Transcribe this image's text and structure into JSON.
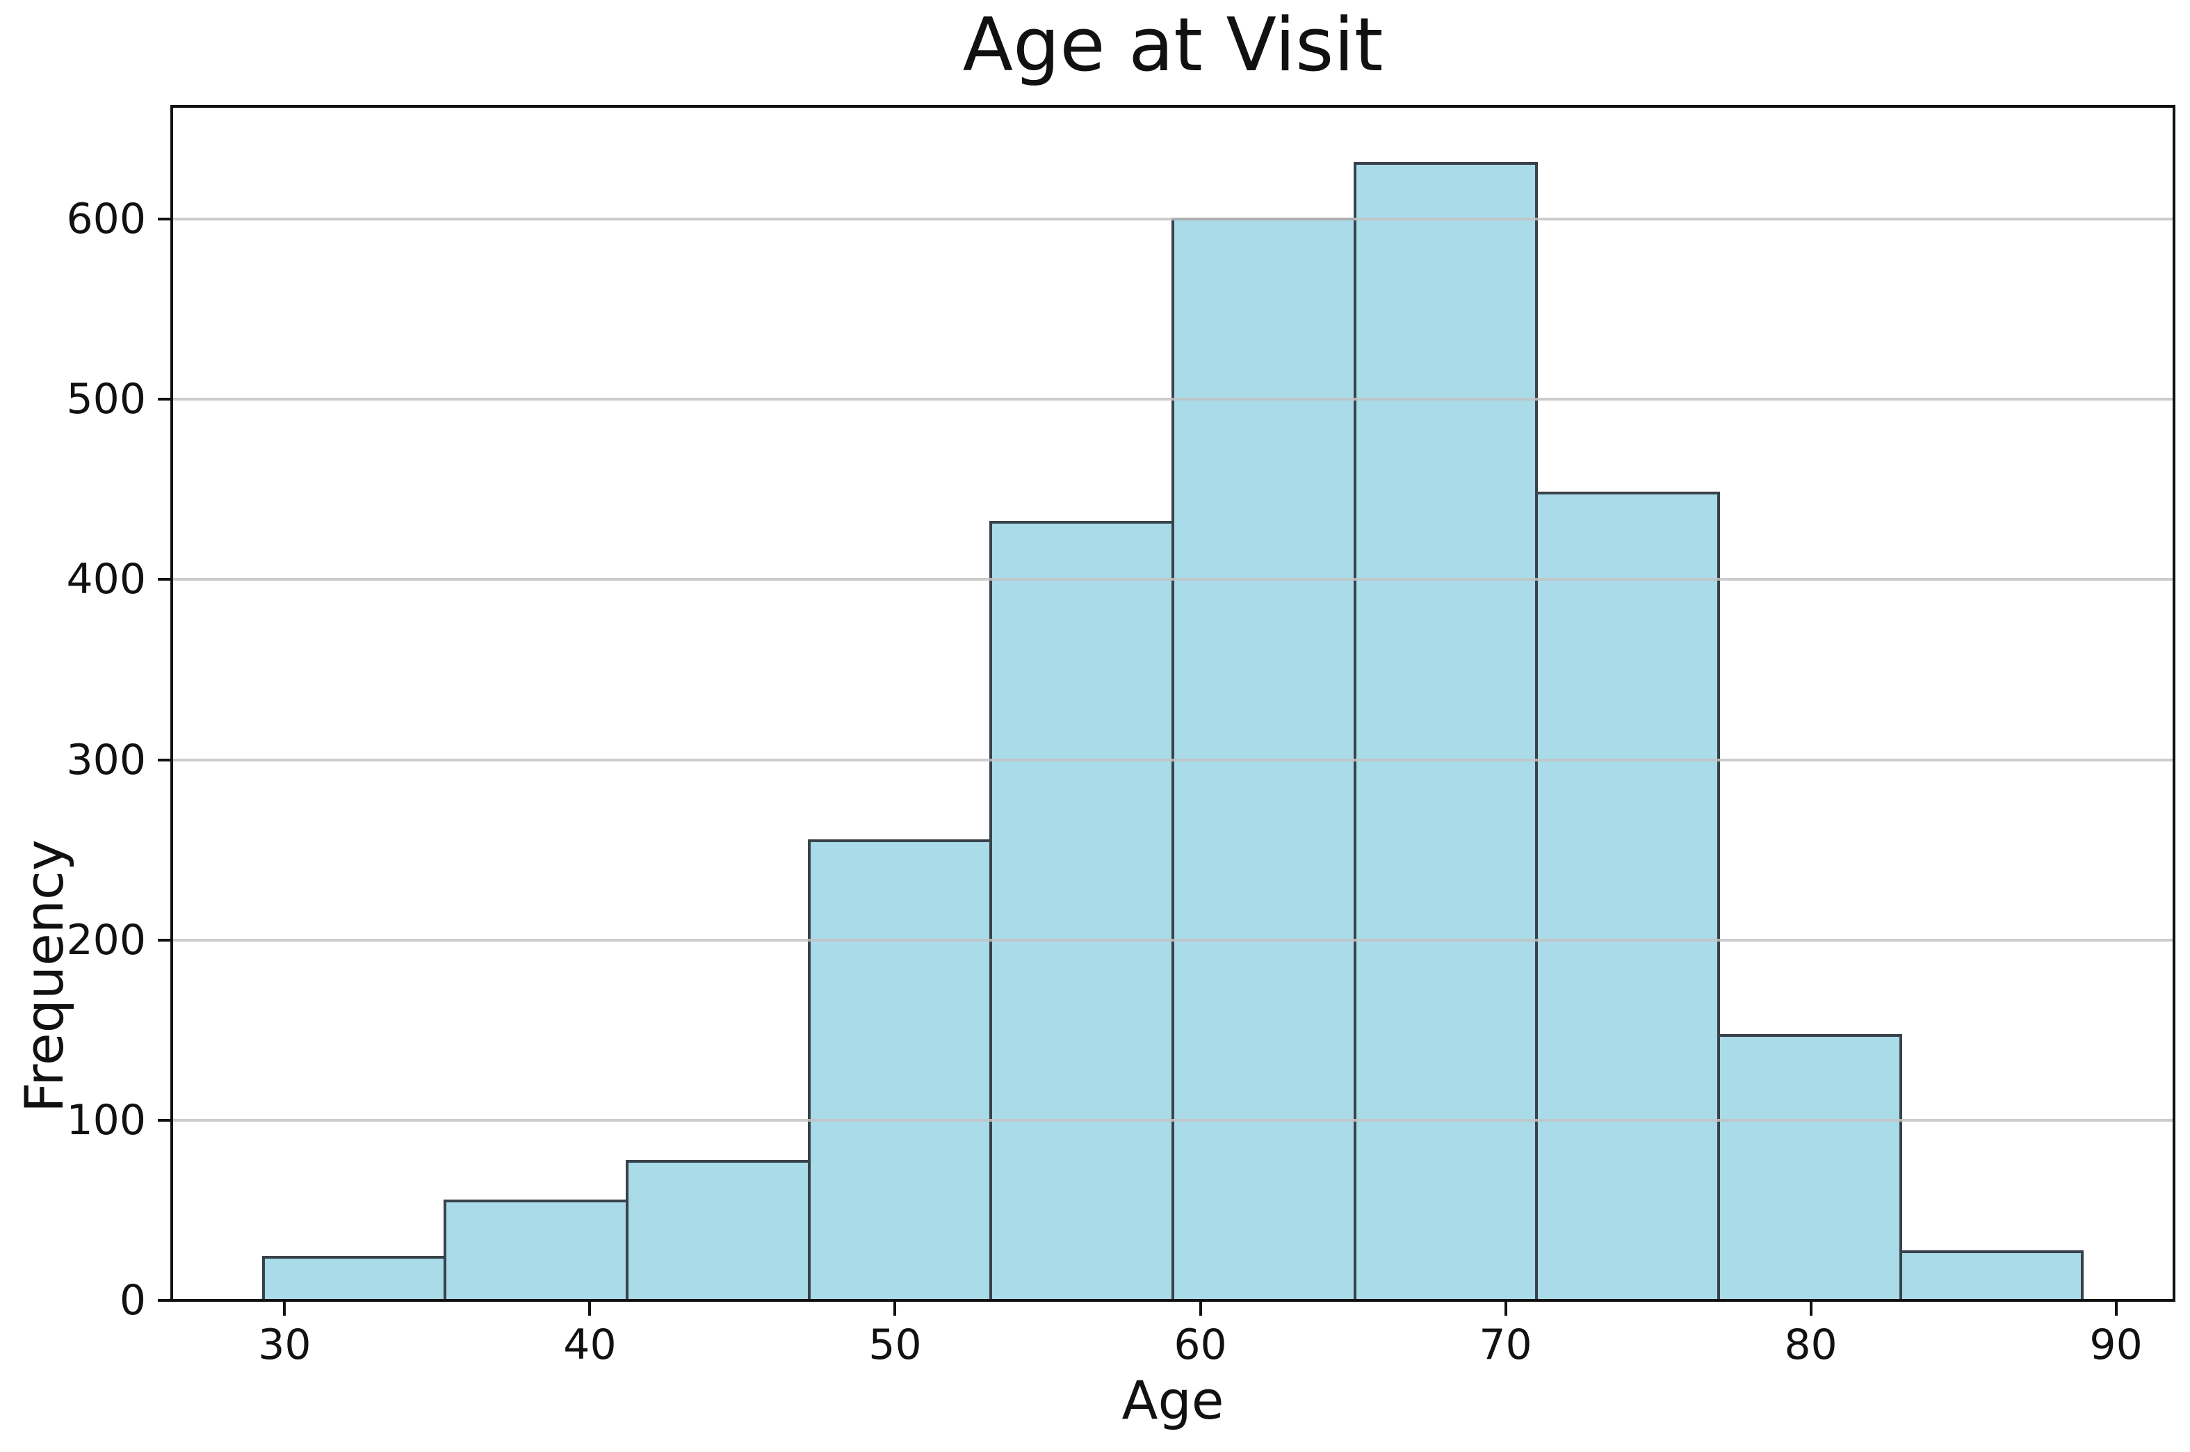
{
  "chart_data": {
    "type": "bar",
    "subtype": "histogram",
    "title": "Age at Visit",
    "xlabel": "Age",
    "ylabel": "Frequency",
    "bin_edges": [
      29.3,
      35.26,
      41.22,
      47.18,
      53.14,
      59.1,
      65.06,
      71.02,
      76.98,
      82.94,
      88.9
    ],
    "values": [
      24,
      55,
      77,
      255,
      432,
      600,
      631,
      448,
      147,
      27
    ],
    "xticks": [
      30,
      40,
      50,
      60,
      70,
      80,
      90
    ],
    "yticks": [
      0,
      100,
      200,
      300,
      400,
      500,
      600
    ],
    "xlim": [
      26.3,
      91.9
    ],
    "ylim": [
      0,
      662.6
    ],
    "grid": "horizontal-only, drawn above bars",
    "legend": "none",
    "colors": {
      "bar_fill": "#a9dbe9",
      "bar_edge": "#39424a",
      "gridline": "#c3c3c3",
      "spine": "#111111",
      "text": "#111111",
      "background": "#ffffff"
    }
  }
}
